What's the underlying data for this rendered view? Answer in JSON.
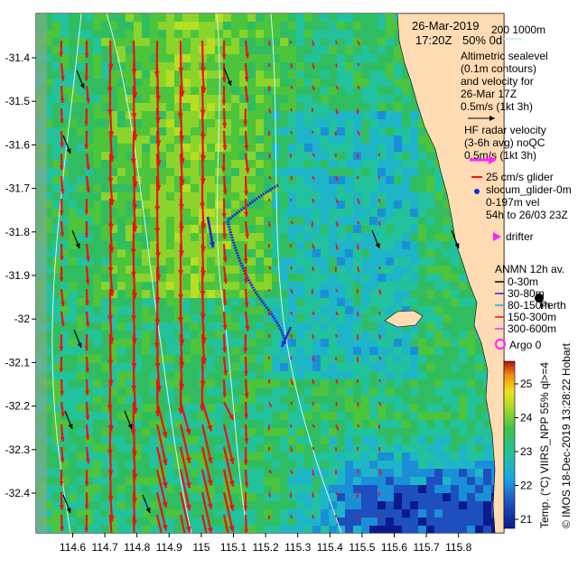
{
  "title": {
    "date": "26-Mar-2019",
    "time": "17:20Z",
    "cloud": "50% 0d",
    "isobaths": "200  1000m"
  },
  "legend": {
    "altimetric_lines": [
      "Altimetric sealevel",
      "(0.1m contours)",
      "and velocity for",
      "26-Mar 17Z"
    ],
    "alt_scale": "0.5m/s (1kt 3h)",
    "hf_lines": [
      "HF radar velocity",
      "(3-6h avg) noQC"
    ],
    "hf_scale": "0.5m/s (1kt 3h)",
    "glider_scale": "25 cm/s glider",
    "glider_name": "slocum_glider-0m",
    "glider_depth": "0-197m vel",
    "glider_window": "54h to 26/03 23Z",
    "drifter": "drifter",
    "anmn_title": "ANMN 12h av.",
    "anmn_depths": [
      "0-30m",
      "30-80m",
      "80-150m",
      "150-300m",
      "300-600m"
    ],
    "argo": "Argo 0",
    "perth": "Perth",
    "hobart": "Hobart"
  },
  "colorbar": {
    "label": "Temp. (°C) VIIRS_NPP 55% ql>=4",
    "ticks": [
      "25",
      "24",
      "23",
      "22",
      "21"
    ]
  },
  "credit": "© IMOS 18-Dec-2019 13:28:22 Hobart",
  "axes": {
    "x_ticks": [
      "114.6",
      "114.7",
      "114.8",
      "114.9",
      "115",
      "115.1",
      "115.2",
      "115.3",
      "115.4",
      "115.5",
      "115.6",
      "115.7",
      "115.8"
    ],
    "y_ticks": [
      "-31.4",
      "-31.5",
      "-31.6",
      "-31.7",
      "-31.8",
      "-31.9",
      "-32",
      "-32.1",
      "-32.2",
      "-32.3",
      "-32.4"
    ]
  },
  "colors": {
    "hf_arrow": "#ee1111",
    "alt_arrow": "#000000",
    "glider": "#1a2bd6",
    "drifter": "#ff22ff",
    "land": "#ffdcb4",
    "sst_cool": "#1f4ea8",
    "sst_mid": "#2fbf62",
    "sst_warm": "#b6de22",
    "contour": "#bfe9ff"
  }
}
